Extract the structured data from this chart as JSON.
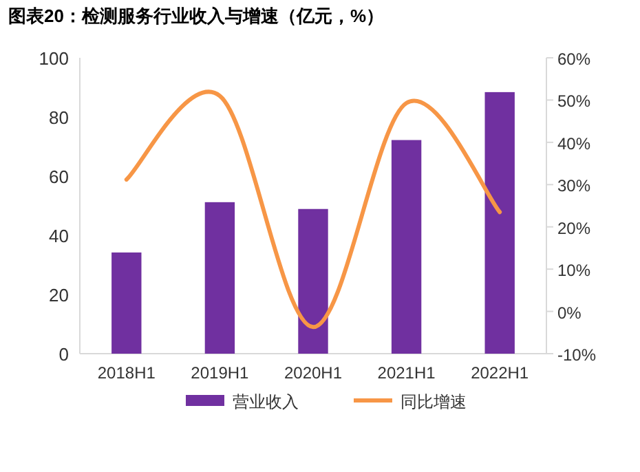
{
  "chart_data": {
    "type": "bar",
    "title": "图表20：检测服务行业收入与增速（亿元，%）",
    "categories": [
      "2018H1",
      "2019H1",
      "2020H1",
      "2021H1",
      "2022H1"
    ],
    "series": [
      {
        "name": "营业收入",
        "color": "#7030a0",
        "values": [
          34.2,
          51.2,
          48.9,
          72.2,
          88.4
        ]
      },
      {
        "name": "同比增速",
        "type": "line",
        "axis": "y2",
        "color": "#f79646",
        "values": [
          31.2,
          51,
          -3.7,
          49.3,
          23.5
        ]
      }
    ],
    "ylim": [
      0,
      100
    ],
    "yticks": [
      0,
      20,
      40,
      60,
      80,
      100
    ],
    "y2lim": [
      -10,
      60
    ],
    "y2ticks": [
      {
        "value": -10,
        "label": "-10%"
      },
      {
        "value": 0,
        "label": "0%"
      },
      {
        "value": 10,
        "label": "10%"
      },
      {
        "value": 20,
        "label": "20%"
      },
      {
        "value": 30,
        "label": "30%"
      },
      {
        "value": 40,
        "label": "40%"
      },
      {
        "value": 50,
        "label": "50%"
      },
      {
        "value": 60,
        "label": "60%"
      }
    ],
    "grid": false,
    "legend": "bottom"
  }
}
